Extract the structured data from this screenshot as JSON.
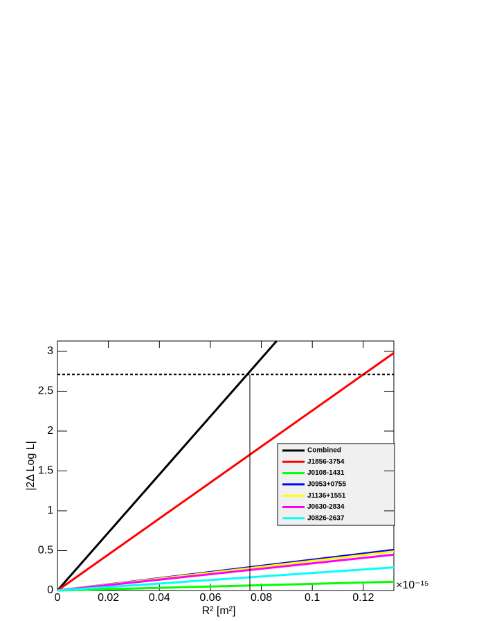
{
  "chart_data": {
    "type": "line",
    "x_label": "R² [m²]",
    "y_label": "|2Δ Log L|",
    "x_multiplier": "×10⁻¹⁵",
    "xlim": [
      0,
      0.132
    ],
    "ylim": [
      0,
      3.13
    ],
    "xticks": [
      0,
      0.02,
      0.04,
      0.06,
      0.08,
      0.1,
      0.12
    ],
    "yticks": [
      0,
      0.5,
      1,
      1.5,
      2,
      2.5,
      3
    ],
    "threshold": 2.71,
    "crossing": 0.0755,
    "series": [
      {
        "name": "Combined",
        "color": "#000000",
        "x": [
          0,
          0.086
        ],
        "values": [
          0,
          3.13
        ]
      },
      {
        "name": "J1856-3754",
        "color": "#ff0000",
        "x": [
          0,
          0.132
        ],
        "values": [
          0,
          2.98
        ]
      },
      {
        "name": "J0108-1431",
        "color": "#00ff00",
        "x": [
          0,
          0.132
        ],
        "values": [
          0,
          0.11
        ]
      },
      {
        "name": "J0953+0755",
        "color": "#0000ff",
        "x": [
          0,
          0.132
        ],
        "values": [
          0,
          0.51
        ]
      },
      {
        "name": "J1136+1551",
        "color": "#ffff00",
        "x": [
          0,
          0.132
        ],
        "values": [
          0,
          0.49
        ]
      },
      {
        "name": "J0630-2834",
        "color": "#ff00ff",
        "x": [
          0,
          0.132
        ],
        "values": [
          0,
          0.45
        ]
      },
      {
        "name": "J0826-2637",
        "color": "#00ffff",
        "x": [
          0,
          0.132
        ],
        "values": [
          0,
          0.29
        ]
      }
    ]
  }
}
